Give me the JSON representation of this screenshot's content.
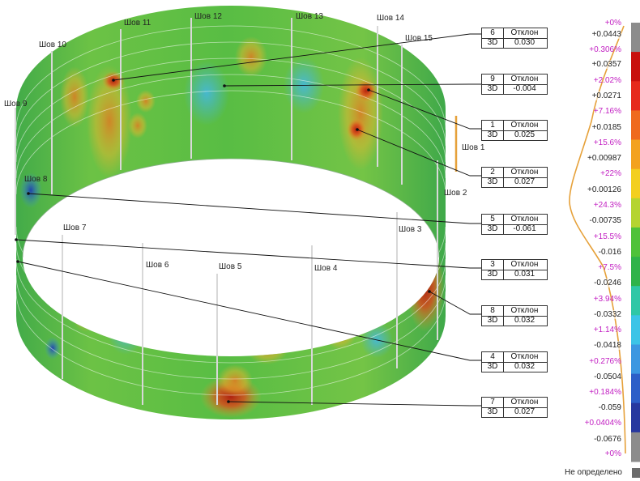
{
  "colors": {
    "band_bg": "#4fbf4f",
    "hot": "#d9391c",
    "warm": "#e39a2a",
    "cool": "#5fcfe0",
    "legend": [
      "#8c8c8c",
      "#c8100d",
      "#e62a1c",
      "#ef6a1e",
      "#f3a21f",
      "#f3cf1f",
      "#b5d431",
      "#4fc23a",
      "#2fb34a",
      "#2fc7a6",
      "#3bc4e7",
      "#3b97e1",
      "#2d5fc8",
      "#27389f",
      "#8c8c8c"
    ],
    "curve": "#e6a13a",
    "pct_text": "#c21fc2"
  },
  "seams": [
    {
      "id": "seam-1",
      "label": "Шов 1"
    },
    {
      "id": "seam-2",
      "label": "Шов 2"
    },
    {
      "id": "seam-3",
      "label": "Шов 3"
    },
    {
      "id": "seam-4",
      "label": "Шов 4"
    },
    {
      "id": "seam-5",
      "label": "Шов 5"
    },
    {
      "id": "seam-6",
      "label": "Шов 6"
    },
    {
      "id": "seam-7",
      "label": "Шов 7"
    },
    {
      "id": "seam-8",
      "label": "Шов 8"
    },
    {
      "id": "seam-9",
      "label": "Шов 9"
    },
    {
      "id": "seam-10",
      "label": "Шов 10"
    },
    {
      "id": "seam-11",
      "label": "Шов 11"
    },
    {
      "id": "seam-12",
      "label": "Шов 12"
    },
    {
      "id": "seam-13",
      "label": "Шов 13"
    },
    {
      "id": "seam-14",
      "label": "Шов 14"
    },
    {
      "id": "seam-15",
      "label": "Шов 15"
    }
  ],
  "callouts": [
    {
      "num": "6",
      "head": "Отклон",
      "dim": "3D",
      "value": "0.030"
    },
    {
      "num": "9",
      "head": "Отклон",
      "dim": "3D",
      "value": "-0.004"
    },
    {
      "num": "1",
      "head": "Отклон",
      "dim": "3D",
      "value": "0.025"
    },
    {
      "num": "2",
      "head": "Отклон",
      "dim": "3D",
      "value": "0.027"
    },
    {
      "num": "5",
      "head": "Отклон",
      "dim": "3D",
      "value": "-0.061"
    },
    {
      "num": "3",
      "head": "Отклон",
      "dim": "3D",
      "value": "0.031"
    },
    {
      "num": "8",
      "head": "Отклон",
      "dim": "3D",
      "value": "0.032"
    },
    {
      "num": "4",
      "head": "Отклон",
      "dim": "3D",
      "value": "0.032"
    },
    {
      "num": "7",
      "head": "Отклон",
      "dim": "3D",
      "value": "0.027"
    }
  ],
  "legend": {
    "percents": [
      "+0%",
      "+0.306%",
      "+2.02%",
      "+7.16%",
      "+15.6%",
      "+22%",
      "+24.3%",
      "+15.5%",
      "+7.5%",
      "+3.94%",
      "+1.14%",
      "+0.276%",
      "+0.184%",
      "+0.0404%",
      "+0%"
    ],
    "values": [
      "+0.0443",
      "+0.0357",
      "+0.0271",
      "+0.0185",
      "+0.00987",
      "+0.00126",
      "-0.00735",
      "-0.016",
      "-0.0246",
      "-0.0332",
      "-0.0418",
      "-0.0504",
      "-0.059",
      "-0.0676"
    ],
    "undefined_label": "Не определено"
  }
}
